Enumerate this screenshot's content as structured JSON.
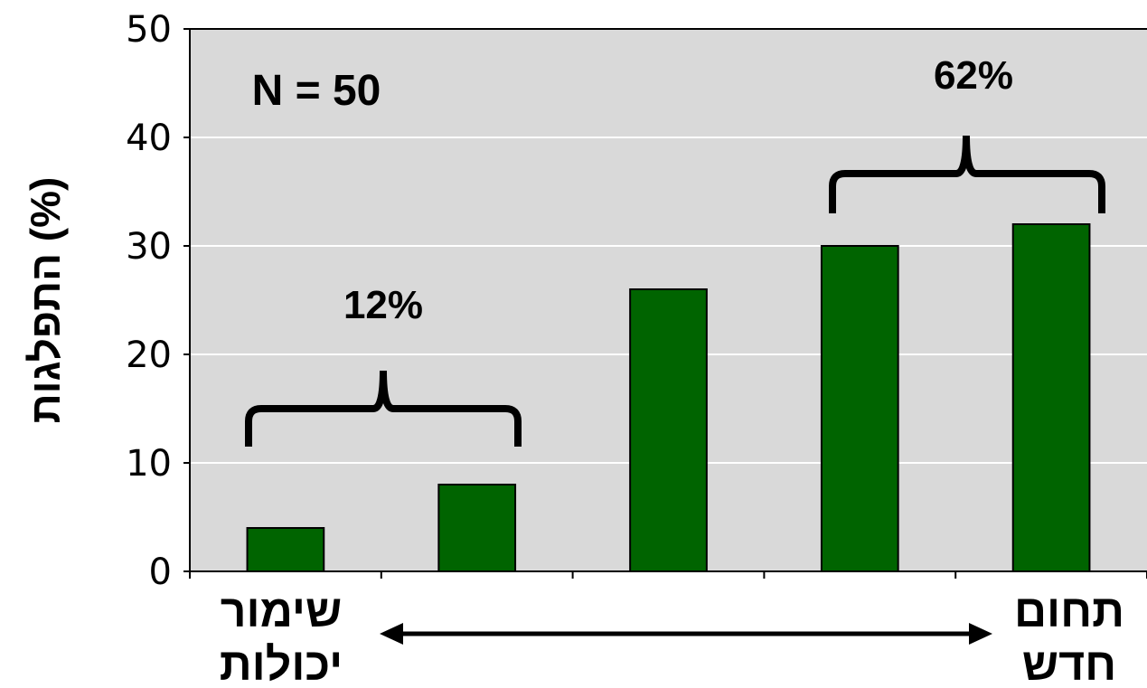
{
  "chart_data": {
    "type": "bar",
    "categories": [
      "",
      "",
      "",
      "",
      ""
    ],
    "values": [
      4,
      8,
      26,
      30,
      32
    ],
    "ylabel": "התפלגות (%)",
    "ylim": [
      0,
      50
    ],
    "yticks": [
      0,
      10,
      20,
      30,
      40,
      50
    ],
    "grid": true,
    "bar_color": "#006400",
    "background_color": "#d9d9d9",
    "annotations": {
      "n_label": "N = 50",
      "left_group": {
        "label": "12%",
        "bars": [
          0,
          1
        ]
      },
      "right_group": {
        "label": "62%",
        "bars": [
          3,
          4
        ]
      }
    },
    "x_endpoints": {
      "left_line1": "שימור",
      "left_line2": "יכולות",
      "right_line1": "תחום",
      "right_line2": "חדש"
    }
  }
}
